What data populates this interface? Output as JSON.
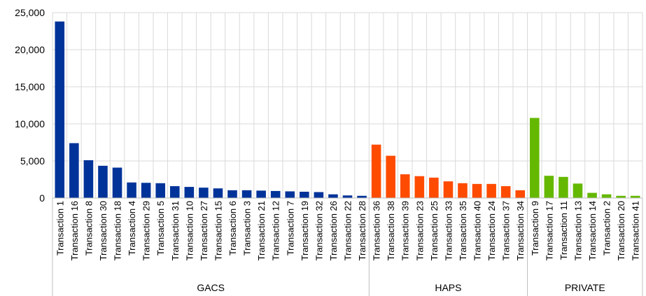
{
  "chart_data": {
    "type": "bar",
    "title": "",
    "xlabel": "",
    "ylabel": "",
    "ylim": [
      0,
      25000
    ],
    "yticks": [
      "0",
      "5,000",
      "10,000",
      "15,000",
      "20,000",
      "25,000"
    ],
    "grid": true,
    "legend": "none",
    "groups": [
      {
        "name": "GACS",
        "color": "#003399",
        "categories": [
          "Transaction 1",
          "Transaction 16",
          "Transaction 8",
          "Transaction 30",
          "Transaction 18",
          "Transaction 4",
          "Transaction 29",
          "Transaction 5",
          "Transaction 31",
          "Transaction 10",
          "Transaction 27",
          "Transaction 15",
          "Transaction 6",
          "Transaction 3",
          "Transaction 21",
          "Transaction 12",
          "Transaction 7",
          "Transaction 19",
          "Transaction 32",
          "Transaction 26",
          "Transaction 22",
          "Transaction 28"
        ],
        "values": [
          23800,
          7400,
          5100,
          4350,
          4100,
          2100,
          2050,
          2000,
          1600,
          1500,
          1400,
          1300,
          1050,
          1050,
          1000,
          950,
          900,
          850,
          800,
          500,
          350,
          300
        ]
      },
      {
        "name": "HAPS",
        "color": "#ff4b00",
        "categories": [
          "Transaction 36",
          "Transaction 38",
          "Transaction 39",
          "Transaction 23",
          "Transaction 25",
          "Transaction 33",
          "Transaction 35",
          "Transaction 40",
          "Transaction 24",
          "Transaction 37",
          "Transaction 34"
        ],
        "values": [
          7200,
          5700,
          3200,
          2950,
          2750,
          2250,
          2000,
          1900,
          1900,
          1600,
          1050
        ]
      },
      {
        "name": "PRIVATE",
        "color": "#65b800",
        "categories": [
          "Transaction 9",
          "Transaction 17",
          "Transaction 11",
          "Transaction 13",
          "Transaction 14",
          "Transaction 2",
          "Transaction 20",
          "Transaction 41"
        ],
        "values": [
          10800,
          3000,
          2850,
          1950,
          700,
          500,
          300,
          300
        ]
      }
    ]
  }
}
